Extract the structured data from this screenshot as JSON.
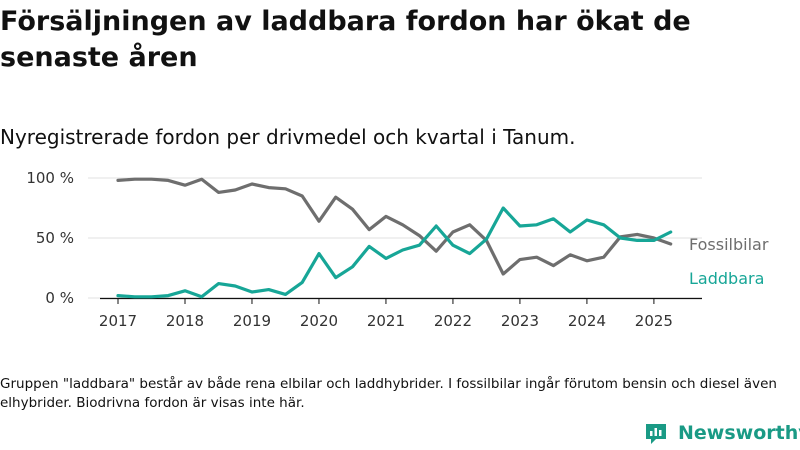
{
  "title": "Försäljningen av laddbara fordon har ökat de senaste åren",
  "subtitle": "Nyregistrerade fordon per drivmedel och kvartal i Tanum.",
  "note": "Gruppen \"laddbara\" består av både rena elbilar och laddhybrider. I fossilbilar ingår förutom bensin och diesel även elhybrider. Biodrivna fordon är visas inte här.",
  "brand": {
    "name": "Newsworthy",
    "icon": "newsworthy-logo-icon",
    "color": "#1a9a85"
  },
  "chart_data": {
    "type": "line",
    "x": [
      2017.0,
      2017.25,
      2017.5,
      2017.75,
      2018.0,
      2018.25,
      2018.5,
      2018.75,
      2019.0,
      2019.25,
      2019.5,
      2019.75,
      2020.0,
      2020.25,
      2020.5,
      2020.75,
      2021.0,
      2021.25,
      2021.5,
      2021.75,
      2022.0,
      2022.25,
      2022.5,
      2022.75,
      2023.0,
      2023.25,
      2023.5,
      2023.75,
      2024.0,
      2024.25,
      2024.5,
      2024.75,
      2025.0,
      2025.25
    ],
    "x_ticks": [
      2017,
      2018,
      2019,
      2020,
      2021,
      2022,
      2023,
      2024,
      2025
    ],
    "xlim": [
      2017.0,
      2025.3
    ],
    "y_ticks": [
      0,
      50,
      100
    ],
    "y_tick_labels": [
      "0 %",
      "50 %",
      "100 %"
    ],
    "ylim": [
      0,
      100
    ],
    "y_unit": "%",
    "grid": true,
    "legend_placement": "right-end-labels",
    "series": [
      {
        "name": "Fossilbilar",
        "color": "#6e6e6e",
        "values": [
          98,
          99,
          99,
          98,
          94,
          99,
          88,
          90,
          95,
          92,
          91,
          85,
          64,
          84,
          74,
          57,
          68,
          61,
          52,
          39,
          55,
          61,
          48,
          20,
          32,
          34,
          27,
          36,
          31,
          34,
          51,
          53,
          50,
          45
        ]
      },
      {
        "name": "Laddbara",
        "color": "#17a697",
        "values": [
          2,
          1,
          1,
          2,
          6,
          1,
          12,
          10,
          5,
          7,
          3,
          13,
          37,
          17,
          26,
          43,
          33,
          40,
          44,
          60,
          44,
          37,
          49,
          75,
          60,
          61,
          66,
          55,
          65,
          61,
          50,
          48,
          48,
          55
        ]
      }
    ]
  }
}
